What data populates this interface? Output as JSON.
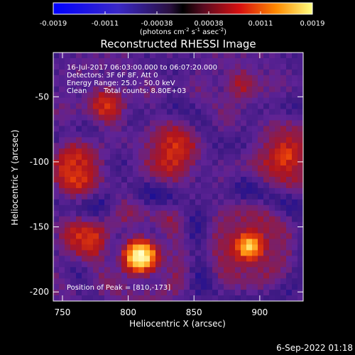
{
  "chart_data": {
    "type": "heatmap",
    "title": "Reconstructed RHESSI Image",
    "xlabel": "Heliocentric X (arcsec)",
    "ylabel": "Heliocentric Y (arcsec)",
    "xlim": [
      743,
      933
    ],
    "ylim": [
      -207,
      -16
    ],
    "x_ticks": [
      750,
      800,
      850,
      900
    ],
    "y_ticks": [
      -50,
      -100,
      -150,
      -200
    ],
    "colorbar": {
      "range": [
        -0.0019,
        0.0019
      ],
      "ticks": [
        "-0.0019",
        "-0.0011",
        "-0.00038",
        "0.00038",
        "0.0011",
        "0.0019"
      ],
      "label": "(photons cm",
      "label_exp1": "-2",
      "label_mid": " s",
      "label_exp2": "-1",
      "label_end": " asec",
      "label_exp3": "-2",
      "label_close": ")"
    },
    "annotations": [
      "16-Jul-2017 06:03:00.000 to 06:07:20.000",
      "Detectors: 3F 6F 8F, Att 0",
      "Energy Range: 25.0 - 50.0 keV",
      "Clean",
      "Total counts: 8.80E+03",
      "Position of Peak = [810,-173]"
    ],
    "peak": [
      810,
      -173
    ],
    "sources": [
      {
        "x": 810,
        "y": -173,
        "amp": 1.0
      },
      {
        "x": 892,
        "y": -165,
        "amp": 0.95
      },
      {
        "x": 920,
        "y": -95,
        "amp": 0.65
      },
      {
        "x": 833,
        "y": -92,
        "amp": 0.55
      },
      {
        "x": 760,
        "y": -105,
        "amp": 0.55
      },
      {
        "x": 765,
        "y": -160,
        "amp": 0.45
      },
      {
        "x": 783,
        "y": -55,
        "amp": 0.4
      },
      {
        "x": 885,
        "y": -40,
        "amp": 0.3
      }
    ],
    "footer": "6-Sep-2022 01:18"
  }
}
